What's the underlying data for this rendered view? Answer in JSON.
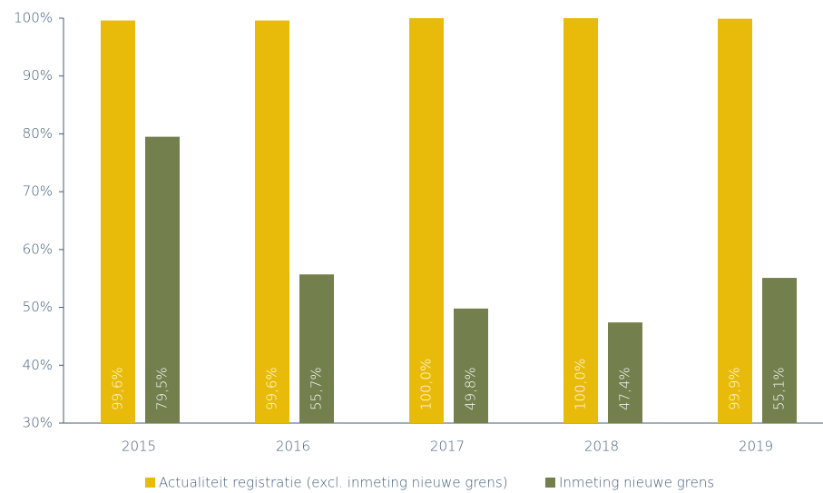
{
  "chart_data": {
    "type": "bar",
    "categories": [
      "2015",
      "2016",
      "2017",
      "2018",
      "2019"
    ],
    "series": [
      {
        "name": "Actualiteit registratie (excl. inmeting nieuwe grens)",
        "color": "#e8bb0a",
        "values": [
          99.6,
          99.6,
          100.0,
          100.0,
          99.9
        ],
        "value_labels": [
          "99,6%",
          "99,6%",
          "100,0%",
          "100,0%",
          "99,9%"
        ]
      },
      {
        "name": "Inmeting nieuwe grens",
        "color": "#737f4d",
        "values": [
          79.5,
          55.7,
          49.8,
          47.4,
          55.1
        ],
        "value_labels": [
          "79,5%",
          "55,7%",
          "49,8%",
          "47,4%",
          "55,1%"
        ]
      }
    ],
    "ylim": [
      30,
      100
    ],
    "yticks": [
      {
        "value": 30,
        "label": "30%"
      },
      {
        "value": 40,
        "label": "40%"
      },
      {
        "value": 50,
        "label": "50%"
      },
      {
        "value": 60,
        "label": "60%"
      },
      {
        "value": 70,
        "label": "70%"
      },
      {
        "value": 80,
        "label": "80%"
      },
      {
        "value": 90,
        "label": "90%"
      },
      {
        "value": 100,
        "label": "100%"
      }
    ],
    "legend": "bottom"
  }
}
